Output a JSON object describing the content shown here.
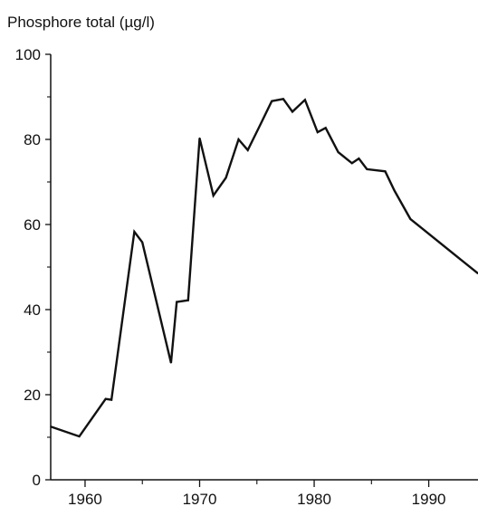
{
  "chart_data": {
    "type": "line",
    "ylabel": "Phosphore total (µg/l)",
    "xlabel": "",
    "xlim": [
      1957,
      1994.3
    ],
    "ylim": [
      0,
      100
    ],
    "x_ticks": [
      1960,
      1970,
      1980,
      1990
    ],
    "x_minor_ticks": [
      1965,
      1975,
      1985
    ],
    "y_ticks": [
      0,
      20,
      40,
      60,
      80,
      100
    ],
    "y_minor_ticks": [
      10,
      30,
      50,
      70,
      90
    ],
    "grid": false,
    "line_color": "#111111",
    "series": [
      {
        "x": [
          1957.0,
          1959.5,
          1961.8,
          1962.3,
          1964.3,
          1965.0,
          1967.5,
          1968.0,
          1969.0,
          1970.0,
          1971.2,
          1972.3,
          1973.4,
          1974.2,
          1975.3,
          1976.3,
          1977.3,
          1978.1,
          1979.2,
          1980.3,
          1981.0,
          1982.1,
          1983.3,
          1983.9,
          1984.6,
          1986.2,
          1987.0,
          1988.4,
          1994.3
        ],
        "values": [
          12.5,
          10.2,
          19.0,
          18.8,
          58.3,
          55.8,
          27.5,
          41.8,
          42.2,
          80.3,
          66.8,
          71.0,
          80.0,
          77.5,
          83.5,
          89.0,
          89.5,
          86.5,
          89.3,
          81.7,
          82.7,
          77.0,
          74.4,
          75.5,
          73.0,
          72.5,
          68.0,
          61.3,
          48.5
        ]
      }
    ]
  }
}
